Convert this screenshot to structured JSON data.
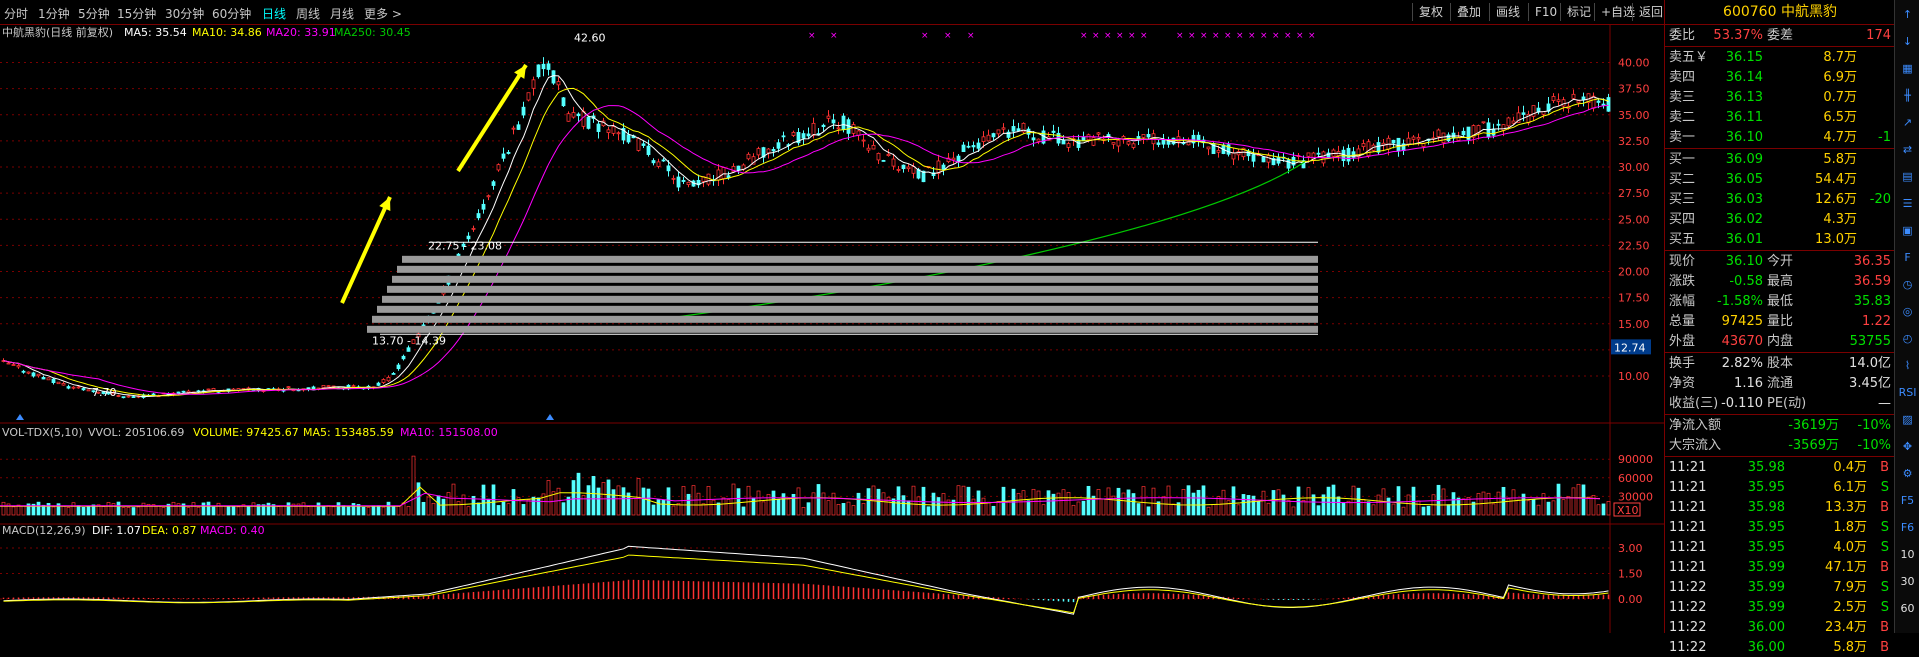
{
  "toolbar": {
    "timeframes": [
      "分时",
      "1分钟",
      "5分钟",
      "15分钟",
      "30分钟",
      "60分钟",
      "日线",
      "周线",
      "月线",
      "更多 >"
    ],
    "active_timeframe": "日线",
    "buttons": [
      "复权",
      "叠加",
      "画线",
      "F10",
      "标记",
      "+自选",
      "返回"
    ]
  },
  "main_legend": {
    "title": "中航黑豹(日线 前复权)",
    "ma5": "MA5: 35.54",
    "ma10": "MA10: 34.86",
    "ma20": "MA20: 33.91",
    "ma250": "MA250: 30.45"
  },
  "price_annotations": {
    "high": "42.60",
    "low": "7.70",
    "range_upper": "22.75 - 23.08",
    "range_lower": "13.70 - 14.39",
    "current_marker": "12.74"
  },
  "price_axis": [
    "40.00",
    "37.50",
    "35.00",
    "32.50",
    "30.00",
    "27.50",
    "25.00",
    "22.50",
    "20.00",
    "17.50",
    "15.00",
    "12.50",
    "10.00"
  ],
  "volume_legend": {
    "name": "VOL-TDX(5,10)",
    "vvol": "VVOL: 205106.69",
    "volume": "VOLUME: 97425.67",
    "ma5": "MA5: 153485.59",
    "ma10": "MA10: 151508.00"
  },
  "volume_axis": [
    "90000",
    "60000",
    "30000"
  ],
  "volume_unit": "X10",
  "macd_legend": {
    "name": "MACD(12,26,9)",
    "dif": "DIF: 1.07",
    "dea": "DEA: 0.87",
    "macd": "MACD: 0.40"
  },
  "macd_axis": [
    "3.00",
    "1.50",
    "0.00"
  ],
  "colors": {
    "up": "#ff3232",
    "down": "#54ffff",
    "ma5": "#ffffff",
    "ma10": "#ffff00",
    "ma20": "#ff00ff",
    "ma250": "#00c800",
    "arrow": "#ffff00",
    "grid": "#7a0000"
  },
  "quote": {
    "code_name": "600760 中航黑豹",
    "weibi_label": "委比",
    "weibi": "53.37%",
    "weicha_label": "委差",
    "weicha": "174",
    "asks": [
      {
        "label": "卖五￥",
        "price": "36.15",
        "vol": "8.7万",
        "chg": ""
      },
      {
        "label": "卖四",
        "price": "36.14",
        "vol": "6.9万",
        "chg": ""
      },
      {
        "label": "卖三",
        "price": "36.13",
        "vol": "0.7万",
        "chg": ""
      },
      {
        "label": "卖二",
        "price": "36.11",
        "vol": "6.5万",
        "chg": ""
      },
      {
        "label": "卖一",
        "price": "36.10",
        "vol": "4.7万",
        "chg": "-1"
      }
    ],
    "bids": [
      {
        "label": "买一",
        "price": "36.09",
        "vol": "5.8万",
        "chg": ""
      },
      {
        "label": "买二",
        "price": "36.05",
        "vol": "54.4万",
        "chg": ""
      },
      {
        "label": "买三",
        "price": "36.03",
        "vol": "12.6万",
        "chg": "-20"
      },
      {
        "label": "买四",
        "price": "36.02",
        "vol": "4.3万",
        "chg": ""
      },
      {
        "label": "买五",
        "price": "36.01",
        "vol": "13.0万",
        "chg": ""
      }
    ],
    "stats": [
      {
        "l1": "现价",
        "v1": "36.10",
        "l2": "今开",
        "v2": "36.35"
      },
      {
        "l1": "涨跌",
        "v1": "-0.58",
        "l2": "最高",
        "v2": "36.59"
      },
      {
        "l1": "涨幅",
        "v1": "-1.58%",
        "l2": "最低",
        "v2": "35.83"
      },
      {
        "l1": "总量",
        "v1": "97425",
        "l2": "量比",
        "v2": "1.22"
      },
      {
        "l1": "外盘",
        "v1": "43670",
        "l2": "内盘",
        "v2": "53755"
      }
    ],
    "stats2": [
      {
        "l1": "换手",
        "v1": "2.82%",
        "l2": "股本",
        "v2": "14.0亿"
      },
      {
        "l1": "净资",
        "v1": "1.16",
        "l2": "流通",
        "v2": "3.45亿"
      },
      {
        "l1": "收益(三)",
        "v1": "-0.110",
        "l2": "PE(动)",
        "v2": "—"
      }
    ],
    "flows": [
      {
        "label": "净流入额",
        "value": "-3619万",
        "pct": "-10%"
      },
      {
        "label": "大宗流入",
        "value": "-3569万",
        "pct": "-10%"
      }
    ],
    "ticks": [
      {
        "time": "11:21",
        "price": "35.98",
        "vol": "0.4万",
        "bs": "B"
      },
      {
        "time": "11:21",
        "price": "35.95",
        "vol": "6.1万",
        "bs": "S"
      },
      {
        "time": "11:21",
        "price": "35.98",
        "vol": "13.3万",
        "bs": "B"
      },
      {
        "time": "11:21",
        "price": "35.95",
        "vol": "1.8万",
        "bs": "S"
      },
      {
        "time": "11:21",
        "price": "35.95",
        "vol": "4.0万",
        "bs": "S"
      },
      {
        "time": "11:21",
        "price": "35.99",
        "vol": "47.1万",
        "bs": "B"
      },
      {
        "time": "11:22",
        "price": "35.99",
        "vol": "7.9万",
        "bs": "S"
      },
      {
        "time": "11:22",
        "price": "35.99",
        "vol": "2.5万",
        "bs": "S"
      },
      {
        "time": "11:22",
        "price": "36.00",
        "vol": "23.4万",
        "bs": "B"
      },
      {
        "time": "11:22",
        "price": "36.00",
        "vol": "5.8万",
        "bs": "B"
      }
    ]
  },
  "side_icons": [
    "arrow-up-icon",
    "arrow-down-icon",
    "grid-icon",
    "kline-icon",
    "trend-icon",
    "compare-icon",
    "chart-icon",
    "list-icon",
    "news-icon",
    "f10-icon",
    "clock-icon",
    "target-icon",
    "gauge-icon",
    "indicator-icon",
    "rsi-icon",
    "kdj-icon",
    "move-icon",
    "settings-icon",
    "f5-icon",
    "f6-icon"
  ],
  "side_icon_text": [
    "↑",
    "↓",
    "▦",
    "╫",
    "↗",
    "⇄",
    "▤",
    "☰",
    "▣",
    "F",
    "◷",
    "◎",
    "◴",
    "⌇",
    "RSI",
    "▨",
    "✥",
    "⚙",
    "F5",
    "F6",
    "10",
    "30",
    "60"
  ]
}
